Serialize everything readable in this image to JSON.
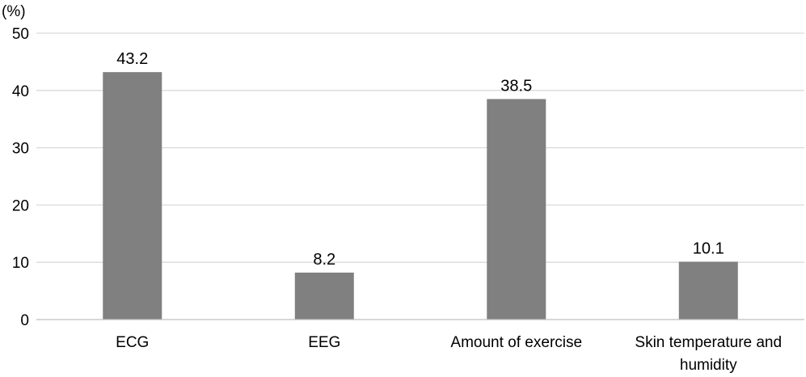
{
  "chart_data": {
    "type": "bar",
    "unit_label": "(%)",
    "categories": [
      [
        "ECG"
      ],
      [
        "EEG"
      ],
      [
        "Amount of exercise"
      ],
      [
        "Skin temperature and",
        "humidity"
      ]
    ],
    "values": [
      43.2,
      8.2,
      38.5,
      10.1
    ],
    "data_labels": [
      "43.2",
      "8.2",
      "38.5",
      "10.1"
    ],
    "yticks": [
      "0",
      "10",
      "20",
      "30",
      "40",
      "50"
    ],
    "ylim": [
      0,
      50
    ],
    "grid": true,
    "legend": "none",
    "colors": {
      "bar": "#808080",
      "grid": "#d9d9d9",
      "text": "#000000"
    }
  }
}
